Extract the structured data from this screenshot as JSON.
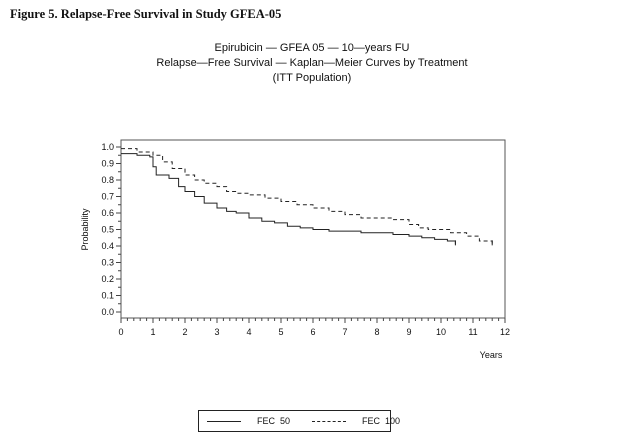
{
  "figure": {
    "caption": "Figure 5. Relapse-Free Survival in Study GFEA-05"
  },
  "chart_data": {
    "type": "line",
    "title": "Epirubicin — GFEA 05 — 10—years FU",
    "subtitle": "Relapse—Free Survival — Kaplan—Meier Curves by Treatment",
    "subtitle2": "(ITT Population)",
    "xlabel": "Years",
    "ylabel": "Probability",
    "xlim": [
      0,
      12
    ],
    "ylim": [
      0,
      1.0
    ],
    "xticks": [
      "0",
      "1",
      "2",
      "3",
      "4",
      "5",
      "6",
      "7",
      "8",
      "9",
      "10",
      "11",
      "12"
    ],
    "yticks": [
      "0.0",
      "0.1",
      "0.2",
      "0.3",
      "0.4",
      "0.5",
      "0.6",
      "0.7",
      "0.8",
      "0.9",
      "1.0"
    ],
    "grid": false,
    "legend_position": "bottom",
    "step": true,
    "series": [
      {
        "name": "FEC  50",
        "style": "solid",
        "x": [
          0,
          0.5,
          0.9,
          1.0,
          1.1,
          1.5,
          1.8,
          2.0,
          2.3,
          2.6,
          3.0,
          3.3,
          3.6,
          4.0,
          4.4,
          4.8,
          5.2,
          5.6,
          6.0,
          6.5,
          7.0,
          7.5,
          8.0,
          8.5,
          9.0,
          9.4,
          9.8,
          10.2,
          10.45
        ],
        "y": [
          0.96,
          0.95,
          0.94,
          0.88,
          0.83,
          0.81,
          0.76,
          0.73,
          0.7,
          0.66,
          0.63,
          0.61,
          0.6,
          0.57,
          0.55,
          0.54,
          0.52,
          0.51,
          0.5,
          0.49,
          0.49,
          0.48,
          0.48,
          0.47,
          0.46,
          0.45,
          0.44,
          0.43,
          0.41
        ]
      },
      {
        "name": "FEC  100",
        "style": "dashed",
        "x": [
          0,
          0.5,
          1.0,
          1.3,
          1.6,
          2.0,
          2.3,
          2.6,
          3.0,
          3.3,
          3.6,
          4.0,
          4.5,
          5.0,
          5.5,
          6.0,
          6.5,
          7.0,
          7.5,
          8.0,
          8.5,
          9.0,
          9.3,
          9.6,
          10.0,
          10.3,
          10.8,
          11.2,
          11.6
        ],
        "y": [
          0.99,
          0.97,
          0.95,
          0.91,
          0.87,
          0.83,
          0.8,
          0.78,
          0.76,
          0.73,
          0.72,
          0.71,
          0.69,
          0.67,
          0.65,
          0.63,
          0.61,
          0.59,
          0.57,
          0.57,
          0.56,
          0.53,
          0.51,
          0.5,
          0.5,
          0.48,
          0.46,
          0.43,
          0.41
        ]
      }
    ]
  },
  "legend": {
    "items": [
      {
        "label": "FEC  50",
        "style": "solid"
      },
      {
        "label": "FEC  100",
        "style": "dashed"
      }
    ]
  }
}
